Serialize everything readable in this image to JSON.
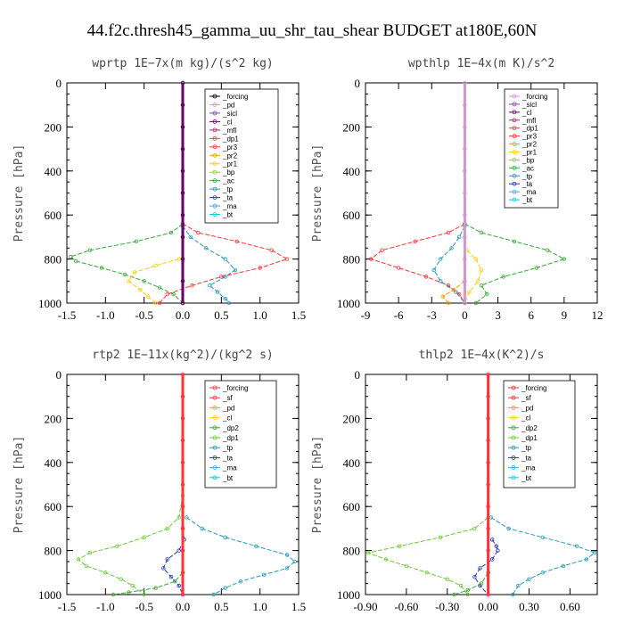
{
  "suptitle": "44.f2c.thresh45_gamma_uu_shr_tau_shear  BUDGET at180E,60N",
  "chart_data": [
    {
      "type": "line",
      "title": "wprtp   1E−7x(m kg)/(s^2 kg)",
      "ylabel": "Pressure [hPa]",
      "xlim": [
        -1.5,
        1.5
      ],
      "ylim": [
        1000,
        0
      ],
      "xticks": [
        -1.5,
        -1.0,
        -0.5,
        0.0,
        0.5,
        1.0,
        1.5
      ],
      "xtick_labels": [
        "-1.5",
        "-1.0",
        "-0.5",
        "0.0",
        "0.5",
        "1.0",
        "1.5"
      ],
      "yticks": [
        0,
        200,
        400,
        600,
        800,
        1000
      ],
      "legend": [
        "_forcing",
        "_pd",
        "_sicl",
        "_cl",
        "_mfl",
        "_dp1",
        "_pr3",
        "_pr2",
        "_pr1",
        "_bp",
        "_ac",
        "_tp",
        "_ta",
        "_ma",
        "_bt"
      ],
      "legend_colors": [
        "#000000",
        "#cc99cc",
        "#8844aa",
        "#660066",
        "#aa2266",
        "#ff3333",
        "#ff3333",
        "#ff9900",
        "#ffcc00",
        "#99cc33",
        "#33aa33",
        "#2299bb",
        "#2233cc",
        "#33aaee",
        "#00ccee"
      ],
      "series": [
        {
          "name": "_ac",
          "color": "#33aa33",
          "y": [
            640,
            680,
            720,
            760,
            790,
            810,
            840,
            870,
            900,
            930,
            960,
            1000
          ],
          "values": [
            0.0,
            -0.15,
            -0.6,
            -1.2,
            -1.45,
            -1.38,
            -1.05,
            -0.75,
            -0.5,
            -0.3,
            -0.12,
            0.0
          ]
        },
        {
          "name": "_pr1",
          "color": "#ffcc00",
          "y": [
            800,
            830,
            860,
            900,
            940,
            970,
            1000
          ],
          "values": [
            -0.05,
            -0.35,
            -0.62,
            -0.7,
            -0.55,
            -0.45,
            -0.35
          ]
        },
        {
          "name": "_dp1",
          "color": "#ff3333",
          "y": [
            640,
            680,
            720,
            760,
            800,
            840,
            880,
            920,
            960,
            1000
          ],
          "values": [
            0.0,
            0.2,
            0.7,
            1.15,
            1.35,
            1.0,
            0.5,
            0.12,
            -0.2,
            -0.3
          ]
        },
        {
          "name": "_tp",
          "color": "#2299bb",
          "y": [
            650,
            700,
            750,
            800,
            850,
            880,
            920,
            950,
            980,
            1000
          ],
          "values": [
            0.0,
            0.1,
            0.3,
            0.55,
            0.68,
            0.55,
            0.35,
            0.45,
            0.55,
            0.6
          ]
        },
        {
          "name": "_forcing",
          "color": "#000000",
          "y": [
            0,
            100,
            200,
            300,
            400,
            500,
            600,
            700,
            800,
            900,
            1000
          ],
          "values": [
            0,
            0,
            0,
            0,
            0,
            0,
            0,
            0,
            0,
            0,
            0
          ]
        },
        {
          "name": "_cl",
          "color": "#660066",
          "y": [
            0,
            100,
            200,
            300,
            400,
            500,
            600,
            700,
            800,
            900,
            1000
          ],
          "values": [
            0,
            0,
            0,
            0,
            0,
            0,
            0,
            0,
            0,
            0,
            0
          ]
        }
      ]
    },
    {
      "type": "line",
      "title": "wpthlp   1E−4x(m K)/s^2",
      "ylabel": "Pressure [hPa]",
      "xlim": [
        -9,
        12
      ],
      "ylim": [
        1000,
        0
      ],
      "xticks": [
        -9,
        -6,
        -3,
        0,
        3,
        6,
        9,
        12
      ],
      "xtick_labels": [
        "-9",
        "-6",
        "-3",
        "0",
        "3",
        "6",
        "9",
        "12"
      ],
      "yticks": [
        0,
        200,
        400,
        600,
        800,
        1000
      ],
      "legend": [
        "_forcing",
        "_sicl",
        "_cl",
        "_mfl",
        "_dp1",
        "_pr3",
        "_pr2",
        "_pr1",
        "_bp",
        "_ac",
        "_tp",
        "_ta",
        "_ma",
        "_bt"
      ],
      "legend_colors": [
        "#cc99cc",
        "#8844aa",
        "#660066",
        "#aa2266",
        "#ff3333",
        "#ff3333",
        "#ff9900",
        "#ffcc00",
        "#99cc33",
        "#33aa33",
        "#2299bb",
        "#2233cc",
        "#33aaee",
        "#00ccee"
      ],
      "series": [
        {
          "name": "_dp1",
          "color": "#ff3333",
          "y": [
            640,
            680,
            720,
            760,
            800,
            840,
            880,
            920,
            960,
            1000
          ],
          "values": [
            0,
            -1.5,
            -4.5,
            -7.5,
            -8.5,
            -6,
            -3.5,
            -1.5,
            -0.5,
            0
          ]
        },
        {
          "name": "_ac",
          "color": "#33aa33",
          "y": [
            640,
            680,
            720,
            760,
            800,
            840,
            880,
            920,
            960,
            1000
          ],
          "values": [
            0,
            1.5,
            4.5,
            7.5,
            9,
            6.5,
            3.5,
            1.5,
            2,
            1
          ]
        },
        {
          "name": "_tp",
          "color": "#2299bb",
          "y": [
            650,
            700,
            750,
            800,
            850,
            900,
            950,
            1000
          ],
          "values": [
            0,
            -0.5,
            -1.2,
            -2.2,
            -2.8,
            -2.2,
            -0.8,
            0
          ]
        },
        {
          "name": "_pr1",
          "color": "#ffcc00",
          "y": [
            760,
            800,
            850,
            900,
            950,
            1000
          ],
          "values": [
            0.2,
            1,
            1.5,
            1.2,
            0.4,
            0
          ]
        },
        {
          "name": "_pr2",
          "color": "#ff9900",
          "y": [
            900,
            940,
            970,
            1000
          ],
          "values": [
            0,
            -1,
            -2,
            -1.5
          ]
        },
        {
          "name": "_forcing",
          "color": "#cc99cc",
          "y": [
            0,
            100,
            200,
            300,
            400,
            500,
            600,
            700,
            800,
            900,
            1000
          ],
          "values": [
            0,
            0,
            0,
            0,
            0,
            0,
            0,
            0,
            0,
            0,
            0
          ]
        }
      ]
    },
    {
      "type": "line",
      "title": "rtp2   1E−11x(kg^2)/(kg^2 s)",
      "ylabel": "Pressure [hPa]",
      "xlim": [
        -1.5,
        1.5
      ],
      "ylim": [
        1000,
        0
      ],
      "xticks": [
        -1.5,
        -1.0,
        -0.5,
        0.0,
        0.5,
        1.0,
        1.5
      ],
      "xtick_labels": [
        "-1.5",
        "-1.0",
        "-0.5",
        "0.0",
        "0.5",
        "1.0",
        "1.5"
      ],
      "yticks": [
        0,
        200,
        400,
        600,
        800,
        1000
      ],
      "legend": [
        "_forcing",
        "_sf",
        "_pd",
        "_cl",
        "_dp2",
        "_dp1",
        "_tp",
        "_ta",
        "_ma",
        "_bt"
      ],
      "legend_colors": [
        "#ff3333",
        "#ff3333",
        "#ff9900",
        "#ffcc00",
        "#33aa33",
        "#66cc33",
        "#2299bb",
        "#2233cc",
        "#33aaee",
        "#00ccee"
      ],
      "series": [
        {
          "name": "_dp1",
          "color": "#66cc33",
          "y": [
            550,
            650,
            700,
            740,
            780,
            810,
            840,
            870,
            900,
            930,
            960,
            1000
          ],
          "values": [
            0,
            -0.05,
            -0.2,
            -0.5,
            -0.85,
            -1.2,
            -1.35,
            -1.25,
            -1.0,
            -0.8,
            -0.65,
            -0.5
          ]
        },
        {
          "name": "_tp",
          "color": "#2299bb",
          "y": [
            650,
            700,
            740,
            780,
            820,
            850,
            880,
            910,
            940,
            970,
            1000
          ],
          "values": [
            0.05,
            0.25,
            0.55,
            0.95,
            1.35,
            1.45,
            1.35,
            1.05,
            0.75,
            0.55,
            0.4
          ]
        },
        {
          "name": "_ta",
          "color": "#2233cc",
          "y": [
            700,
            750,
            800,
            840,
            880,
            920,
            960,
            1000
          ],
          "values": [
            0,
            0.02,
            -0.05,
            -0.2,
            -0.25,
            -0.15,
            -0.05,
            0
          ]
        },
        {
          "name": "_dp2",
          "color": "#33aa33",
          "y": [
            900,
            940,
            970,
            990,
            1000
          ],
          "values": [
            0,
            -0.1,
            -0.35,
            -0.7,
            -0.9
          ]
        },
        {
          "name": "_forcing",
          "color": "#ff3333",
          "y": [
            0,
            100,
            200,
            300,
            400,
            500,
            600,
            700,
            800,
            900,
            1000
          ],
          "values": [
            0,
            0,
            0,
            0,
            0,
            0,
            0,
            0,
            0,
            0,
            0
          ]
        }
      ]
    },
    {
      "type": "line",
      "title": "thlp2   1E−4x(K^2)/s",
      "ylabel": "Pressure [hPa]",
      "xlim": [
        -0.9,
        0.8
      ],
      "ylim": [
        1000,
        0
      ],
      "xticks": [
        -0.9,
        -0.6,
        -0.3,
        0.0,
        0.3,
        0.6
      ],
      "xtick_labels": [
        "-0.90",
        "-0.60",
        "-0.30",
        "0.00",
        "0.30",
        "0.60"
      ],
      "yticks": [
        0,
        200,
        400,
        600,
        800,
        1000
      ],
      "legend": [
        "_forcing",
        "_sf",
        "_pd",
        "_cl",
        "_dp2",
        "_dp1",
        "_tp",
        "_ta",
        "_ma",
        "_bt"
      ],
      "legend_colors": [
        "#ff3333",
        "#ff3333",
        "#ff9900",
        "#ffcc00",
        "#33aa33",
        "#66cc33",
        "#2299bb",
        "#2233cc",
        "#33aaee",
        "#00ccee"
      ],
      "series": [
        {
          "name": "_dp1",
          "color": "#66cc33",
          "y": [
            650,
            700,
            740,
            780,
            810,
            840,
            870,
            900,
            930,
            960,
            1000
          ],
          "values": [
            0,
            -0.1,
            -0.35,
            -0.65,
            -0.88,
            -0.75,
            -0.6,
            -0.45,
            -0.3,
            -0.2,
            -0.15
          ]
        },
        {
          "name": "_tp",
          "color": "#2299bb",
          "y": [
            650,
            700,
            740,
            780,
            810,
            840,
            870,
            900,
            930,
            960,
            1000
          ],
          "values": [
            0.02,
            0.15,
            0.4,
            0.65,
            0.78,
            0.72,
            0.55,
            0.4,
            0.3,
            0.22,
            0.18
          ]
        },
        {
          "name": "_ta",
          "color": "#2233cc",
          "y": [
            750,
            780,
            800,
            840,
            880,
            920,
            960,
            1000
          ],
          "values": [
            0.03,
            0.06,
            0.07,
            0.03,
            -0.06,
            -0.1,
            -0.06,
            0
          ]
        },
        {
          "name": "_dp2",
          "color": "#33aa33",
          "y": [
            900,
            950,
            980,
            1000
          ],
          "values": [
            0,
            -0.05,
            -0.15,
            -0.25
          ]
        },
        {
          "name": "_forcing",
          "color": "#ff3333",
          "y": [
            0,
            100,
            200,
            300,
            400,
            500,
            600,
            700,
            800,
            900,
            1000
          ],
          "values": [
            0,
            0,
            0,
            0,
            0,
            0,
            0,
            0,
            0,
            0,
            0
          ]
        }
      ]
    }
  ]
}
